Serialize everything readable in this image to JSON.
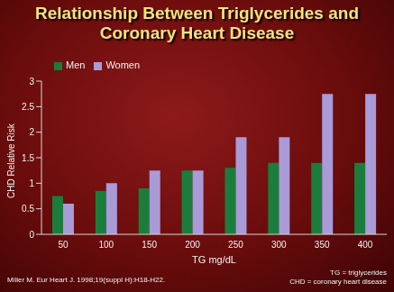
{
  "chart_data": {
    "type": "bar",
    "title": "Relationship Between Triglycerides and Coronary Heart Disease",
    "x_label": "TG mg/dL",
    "y_label": "CHD Relative Risk",
    "categories": [
      "50",
      "100",
      "150",
      "200",
      "250",
      "300",
      "350",
      "400"
    ],
    "series": [
      {
        "name": "Men",
        "color": "#1b7d3c",
        "values": [
          0.75,
          0.85,
          0.9,
          1.25,
          1.3,
          1.4,
          1.4,
          1.4
        ]
      },
      {
        "name": "Women",
        "color": "#a99ad8",
        "values": [
          0.6,
          1.0,
          1.25,
          1.25,
          1.9,
          1.9,
          2.75,
          2.75
        ]
      }
    ],
    "ylim": [
      0,
      3
    ],
    "yticks": [
      0,
      0.5,
      1,
      1.5,
      2,
      2.5,
      3
    ],
    "grid": false,
    "legend": "upper left",
    "annotations": [
      "Miller M. Eur Heart J. 1998;19(suppl H):H18-H22.",
      "TG = triglycerides",
      "CHD = coronary heart disease"
    ]
  }
}
